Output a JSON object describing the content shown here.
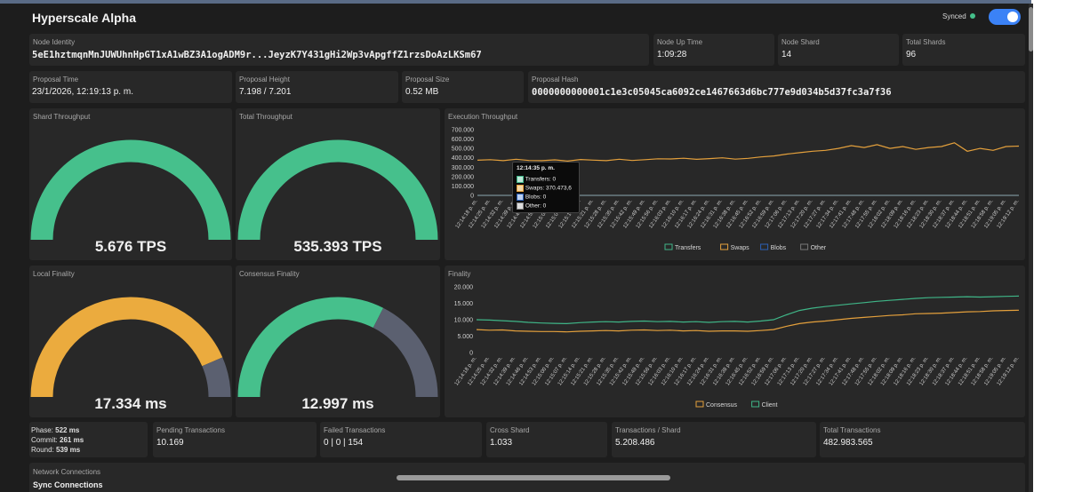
{
  "app": {
    "title": "Hyperscale Alpha",
    "sync_label": "Synced"
  },
  "colors": {
    "transfers": "#3fb587",
    "swaps": "#e4a03c",
    "blobs": "#2b5fb5",
    "other": "#777777",
    "green": "#46c08c",
    "orange": "#ebab3e",
    "grey": "#5b6070"
  },
  "node": {
    "identity_label": "Node Identity",
    "identity": "5eE1hztmqnMnJUWUhnHpGT1xA1wBZ3A1ogADM9r...JeyzK7Y431gHi2Wp3vApgffZ1rzsDoAzLKSm67",
    "uptime_label": "Node Up Time",
    "uptime": "1:09:28",
    "shard_label": "Node Shard",
    "shard": "14",
    "total_shards_label": "Total Shards",
    "total_shards": "96"
  },
  "proposal": {
    "time_label": "Proposal Time",
    "time": "23/1/2026, 12:19:13 p. m.",
    "height_label": "Proposal Height",
    "height": "7.198 / 7.201",
    "size_label": "Proposal Size",
    "size": "0.52 MB",
    "hash_label": "Proposal Hash",
    "hash": "0000000000001c1e3c05045ca6092ce1467663d6bc777e9d034b5d37fc3a7f36"
  },
  "gauges": [
    {
      "label": "Shard Throughput",
      "value": "5.676 TPS",
      "fraction": 1.0
    },
    {
      "label": "Total Throughput",
      "value": "535.393 TPS",
      "fraction": 1.0
    },
    {
      "label": "Local Finality",
      "value": "17.334 ms",
      "fraction": 0.87
    },
    {
      "label": "Consensus Finality",
      "value": "12.997 ms",
      "fraction": 0.65
    }
  ],
  "tooltip": {
    "time": "12:14:35 p. m.",
    "rows": [
      "Transfers: 0",
      "Swaps: 370.473,6",
      "Blobs: 0",
      "Other: 0"
    ]
  },
  "time_ticks": [
    "12:14:18 p. m.",
    "12:14:25 p. m.",
    "12:14:32 p. m.",
    "12:14:39 p. m.",
    "12:14:46 p. m.",
    "12:14:53 p. m.",
    "12:15:00 p. m.",
    "12:15:07 p. m.",
    "12:15:14 p. m.",
    "12:15:21 p. m.",
    "12:15:28 p. m.",
    "12:15:35 p. m.",
    "12:15:42 p. m.",
    "12:15:49 p. m.",
    "12:15:56 p. m.",
    "12:16:03 p. m.",
    "12:16:10 p. m.",
    "12:16:17 p. m.",
    "12:16:24 p. m.",
    "12:16:31 p. m.",
    "12:16:38 p. m.",
    "12:16:45 p. m.",
    "12:16:52 p. m.",
    "12:16:59 p. m.",
    "12:17:06 p. m.",
    "12:17:13 p. m.",
    "12:17:20 p. m.",
    "12:17:27 p. m.",
    "12:17:34 p. m.",
    "12:17:41 p. m.",
    "12:17:48 p. m.",
    "12:17:55 p. m.",
    "12:18:02 p. m.",
    "12:18:09 p. m.",
    "12:18:16 p. m.",
    "12:18:23 p. m.",
    "12:18:30 p. m.",
    "12:18:37 p. m.",
    "12:18:44 p. m.",
    "12:18:51 p. m.",
    "12:18:58 p. m.",
    "12:19:05 p. m.",
    "12:19:12 p. m."
  ],
  "chart_data": [
    {
      "type": "line",
      "title": "Execution Throughput",
      "ylim": [
        0,
        700000
      ],
      "yticks": [
        "700.000",
        "600.000",
        "500.000",
        "400.000",
        "300.000",
        "200.000",
        "100.000",
        "0"
      ],
      "series": [
        {
          "name": "Transfers",
          "values": [
            0,
            0,
            0,
            0,
            0,
            0,
            0,
            0,
            0,
            0,
            0,
            0,
            0,
            0,
            0,
            0,
            0,
            0,
            0,
            0,
            0,
            0,
            0,
            0,
            0,
            0,
            0,
            0,
            0,
            0,
            0,
            0,
            0,
            0,
            0,
            0,
            0,
            0,
            0,
            0,
            0,
            0,
            0
          ]
        },
        {
          "name": "Swaps",
          "values": [
            375000,
            380000,
            370000,
            385000,
            372000,
            370000,
            378000,
            365000,
            382000,
            376000,
            370000,
            385000,
            372000,
            380000,
            390000,
            388000,
            395000,
            384000,
            392000,
            400000,
            386000,
            394000,
            410000,
            420000,
            440000,
            455000,
            470000,
            480000,
            500000,
            530000,
            510000,
            540000,
            500000,
            520000,
            490000,
            510000,
            520000,
            560000,
            470000,
            500000,
            480000,
            520000,
            525000
          ]
        },
        {
          "name": "Blobs",
          "values": [
            0,
            0,
            0,
            0,
            0,
            0,
            0,
            0,
            0,
            0,
            0,
            0,
            0,
            0,
            0,
            0,
            0,
            0,
            0,
            0,
            0,
            0,
            0,
            0,
            0,
            0,
            0,
            0,
            0,
            0,
            0,
            0,
            0,
            0,
            0,
            0,
            0,
            0,
            0,
            0,
            0,
            0,
            0
          ]
        },
        {
          "name": "Other",
          "values": [
            0,
            0,
            0,
            0,
            0,
            0,
            0,
            0,
            0,
            0,
            0,
            0,
            0,
            0,
            0,
            0,
            0,
            0,
            0,
            0,
            0,
            0,
            0,
            0,
            0,
            0,
            0,
            0,
            0,
            0,
            0,
            0,
            0,
            0,
            0,
            0,
            0,
            0,
            0,
            0,
            0,
            0,
            0
          ]
        }
      ]
    },
    {
      "type": "line",
      "title": "Finality",
      "ylim": [
        0,
        20000
      ],
      "yticks": [
        "20.000",
        "15.000",
        "10.000",
        "5.000",
        "0"
      ],
      "series": [
        {
          "name": "Consensus",
          "values": [
            7000,
            6800,
            6900,
            6600,
            6500,
            6400,
            6400,
            6300,
            6500,
            6600,
            6700,
            6600,
            6800,
            6900,
            6700,
            6800,
            6600,
            6700,
            6500,
            6600,
            6600,
            6500,
            6700,
            7000,
            8000,
            8800,
            9300,
            9600,
            10000,
            10400,
            10700,
            11000,
            11300,
            11500,
            11800,
            11900,
            12000,
            12200,
            12400,
            12500,
            12700,
            12800,
            12900
          ]
        },
        {
          "name": "Client",
          "values": [
            10000,
            9900,
            9700,
            9500,
            9200,
            9000,
            8900,
            8800,
            9100,
            9300,
            9400,
            9300,
            9500,
            9600,
            9400,
            9500,
            9300,
            9400,
            9200,
            9400,
            9500,
            9300,
            9600,
            10000,
            11500,
            12800,
            13500,
            14000,
            14400,
            14800,
            15200,
            15600,
            15900,
            16200,
            16500,
            16700,
            16800,
            16900,
            17000,
            16900,
            17000,
            17100,
            17200
          ]
        }
      ]
    }
  ],
  "stats": {
    "phase": "522 ms",
    "phase_label": "Phase:",
    "commit": "261 ms",
    "commit_label": "Commit:",
    "round": "539 ms",
    "round_label": "Round:",
    "pending_label": "Pending Transactions",
    "pending": "10.169",
    "failed_label": "Failed Transactions",
    "failed": "0 | 0 | 154",
    "cross_label": "Cross Shard",
    "cross": "1.033",
    "per_shard_label": "Transactions / Shard",
    "per_shard": "5.208.486",
    "total_label": "Total Transactions",
    "total": "482.983.565"
  },
  "network": {
    "label": "Network Connections",
    "sub": "Sync Connections"
  }
}
